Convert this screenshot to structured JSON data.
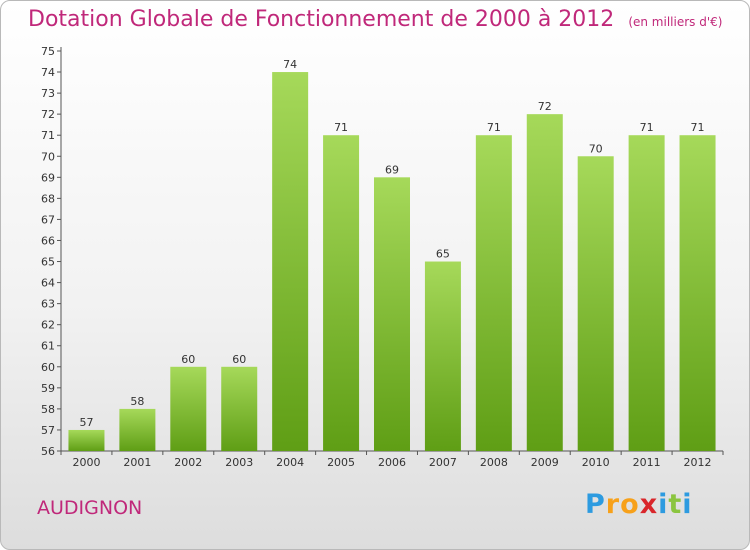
{
  "title": "Dotation Globale de Fonctionnement de 2000 à 2012",
  "unit_note": "(en milliers d'€)",
  "commune": "AUDIGNON",
  "logo": {
    "letters": [
      "P",
      "r",
      "o",
      "x",
      "i",
      "t",
      "i"
    ],
    "colors": [
      "#2d9be0",
      "#f7a11a",
      "#f7a11a",
      "#d9262b",
      "#2d9be0",
      "#8bc53f",
      "#2d9be0"
    ]
  },
  "colors": {
    "bar_light": "#a6d95a",
    "bar_dark": "#5f9e15",
    "title": "#c0287a"
  },
  "chart_data": {
    "type": "bar",
    "categories": [
      "2000",
      "2001",
      "2002",
      "2003",
      "2004",
      "2005",
      "2006",
      "2007",
      "2008",
      "2009",
      "2010",
      "2011",
      "2012"
    ],
    "values": [
      57,
      58,
      60,
      60,
      74,
      71,
      69,
      65,
      71,
      72,
      70,
      71,
      71
    ],
    "ylim": [
      56,
      75
    ],
    "yticks": [
      56,
      57,
      58,
      59,
      60,
      61,
      62,
      63,
      64,
      65,
      66,
      67,
      68,
      69,
      70,
      71,
      72,
      73,
      74,
      75
    ],
    "grid": false,
    "legend": "none"
  }
}
